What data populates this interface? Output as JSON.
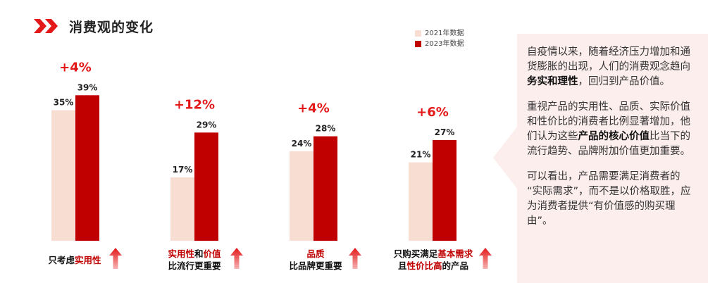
{
  "title": "消费观的变化",
  "legend": {
    "label_2021": "2021年数据",
    "label_2023": "2023年数据"
  },
  "colors": {
    "c2021": "#f8ddd2",
    "c2023": "#c00000",
    "accent": "#e31818",
    "panel": "#fdeeee"
  },
  "chart_data": {
    "type": "bar",
    "title": "消费观的变化",
    "categories": [
      "只考虑实用性",
      "实用性和价值比流行更重要",
      "品质比品牌更重要",
      "只购买满足基本需求且性价比高的产品"
    ],
    "series": [
      {
        "name": "2021年数据",
        "values": [
          35,
          17,
          24,
          21
        ]
      },
      {
        "name": "2023年数据",
        "values": [
          39,
          29,
          28,
          27
        ]
      }
    ],
    "value_labels_2021": [
      "35%",
      "17%",
      "24%",
      "21%"
    ],
    "value_labels_2023": [
      "39%",
      "29%",
      "28%",
      "27%"
    ],
    "changes": [
      "+4%",
      "+12%",
      "+4%",
      "+6%"
    ],
    "unit": "%",
    "ylim": [
      0,
      45
    ],
    "grid": false,
    "legend_position": "top-right"
  },
  "labels": [
    {
      "line1_a": "只考虑",
      "line1_b": "实用性",
      "line2": ""
    },
    {
      "line1_a": "实用性",
      "line1_mid": "和",
      "line1_b": "价值",
      "line2": "比流行更重要"
    },
    {
      "line1_b": "品质",
      "line2": "比品牌更重要"
    },
    {
      "line1_a": "只购买满足",
      "line1_b": "基本需求",
      "line2_a": "且",
      "line2_b": "性价比高",
      "line2_c": "的产品"
    }
  ],
  "panel": {
    "p1_a": "自疫情以来，随着经济压力增加和通货膨胀的出现，人们的消费观念趋向",
    "p1_b": "务实和理性",
    "p1_c": "，回归到产品价值。",
    "p2_a": "重视产品的实用性、品质、实际价值和性价比的消费者比例显著增加，他们认为这些",
    "p2_b": "产品的核心价值",
    "p2_c": "比当下的流行趋势、品牌附加价值更加重要。",
    "p3": "可以看出，产品需要满足消费者的 “实际需求”，而不是以价格取胜，应为消费者提供“有价值感的购买理由”。"
  }
}
